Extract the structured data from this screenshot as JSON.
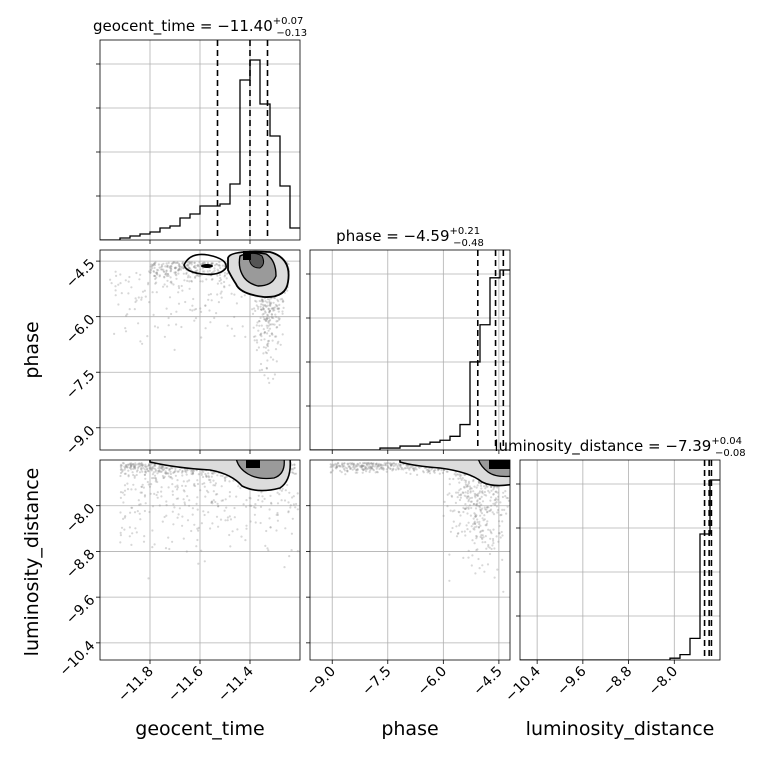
{
  "chart_data": {
    "type": "corner",
    "parameters": [
      "geocent_time",
      "phase",
      "luminosity_distance"
    ],
    "titles": {
      "geocent_time": {
        "prefix": "geocent_time = ",
        "median": "−11.40",
        "plus": "+0.07",
        "minus": "−0.13"
      },
      "phase": {
        "prefix": "phase = ",
        "median": "−4.59",
        "plus": "+0.21",
        "minus": "−0.48"
      },
      "luminosity_distance": {
        "prefix": "luminosity_distance = ",
        "median": "−7.39",
        "plus": "+0.04",
        "minus": "−0.08"
      }
    },
    "axis_labels": {
      "geocent_time": "geocent_time",
      "phase": "phase",
      "luminosity_distance": "luminosity_distance"
    },
    "ranges": {
      "geocent_time": [
        -12.0,
        -11.2
      ],
      "phase": [
        -9.6,
        -4.2
      ],
      "luminosity_distance": [
        -10.7,
        -7.2
      ]
    },
    "ticks": {
      "geocent_time": {
        "values": [
          -11.8,
          -11.6,
          -11.4
        ],
        "labels": [
          "−11.8",
          "−11.6",
          "−11.4"
        ]
      },
      "phase": {
        "values": [
          -9.0,
          -7.5,
          -6.0,
          -4.5
        ],
        "labels": [
          "−9.0",
          "−7.5",
          "−6.0",
          "−4.5"
        ]
      },
      "luminosity_distance": {
        "values": [
          -10.4,
          -9.6,
          -8.8,
          -8.0
        ],
        "labels": [
          "−10.4",
          "−9.6",
          "−8.8",
          "−8.0"
        ]
      }
    },
    "quantiles": {
      "geocent_time": [
        -11.53,
        -11.4,
        -11.33
      ],
      "phase": [
        -5.07,
        -4.59,
        -4.38
      ],
      "luminosity_distance": [
        -7.47,
        -7.39,
        -7.35
      ]
    },
    "histograms": {
      "geocent_time": {
        "edges": [
          -12.0,
          -11.96,
          -11.92,
          -11.88,
          -11.84,
          -11.8,
          -11.76,
          -11.72,
          -11.68,
          -11.64,
          -11.6,
          -11.56,
          -11.52,
          -11.48,
          -11.44,
          -11.4,
          -11.36,
          -11.32,
          -11.28,
          -11.24,
          -11.2
        ],
        "counts": [
          0,
          0,
          1,
          2,
          3,
          4,
          6,
          7,
          11,
          13,
          17,
          17,
          18,
          28,
          80,
          90,
          68,
          52,
          27,
          6
        ]
      },
      "phase": {
        "edges": [
          -9.6,
          -9.33,
          -9.06,
          -8.79,
          -8.52,
          -8.25,
          -7.98,
          -7.71,
          -7.44,
          -7.17,
          -6.9,
          -6.63,
          -6.36,
          -6.09,
          -5.82,
          -5.55,
          -5.28,
          -5.01,
          -4.74,
          -4.47,
          -4.2
        ],
        "counts": [
          0,
          0,
          0,
          0,
          0,
          0,
          0,
          1,
          1,
          2,
          2,
          3,
          4,
          5,
          7,
          13,
          45,
          64,
          88,
          92
        ]
      },
      "luminosity_distance": {
        "edges": [
          -10.7,
          -10.525,
          -10.35,
          -10.175,
          -10.0,
          -9.825,
          -9.65,
          -9.475,
          -9.3,
          -9.125,
          -8.95,
          -8.775,
          -8.6,
          -8.425,
          -8.25,
          -8.075,
          -7.9,
          -7.725,
          -7.55,
          -7.375,
          -7.2
        ],
        "counts": [
          0,
          0,
          0,
          0,
          0,
          0,
          0,
          0,
          0,
          0,
          0,
          0,
          0,
          0,
          0,
          1,
          3,
          12,
          70,
          100
        ]
      }
    },
    "grid": true,
    "colors": {
      "line": "#000000",
      "scatter": "#8c8c8c",
      "fill_dark": "#000000",
      "fill_mid": "#888888",
      "fill_light": "#c8c8c8"
    }
  }
}
